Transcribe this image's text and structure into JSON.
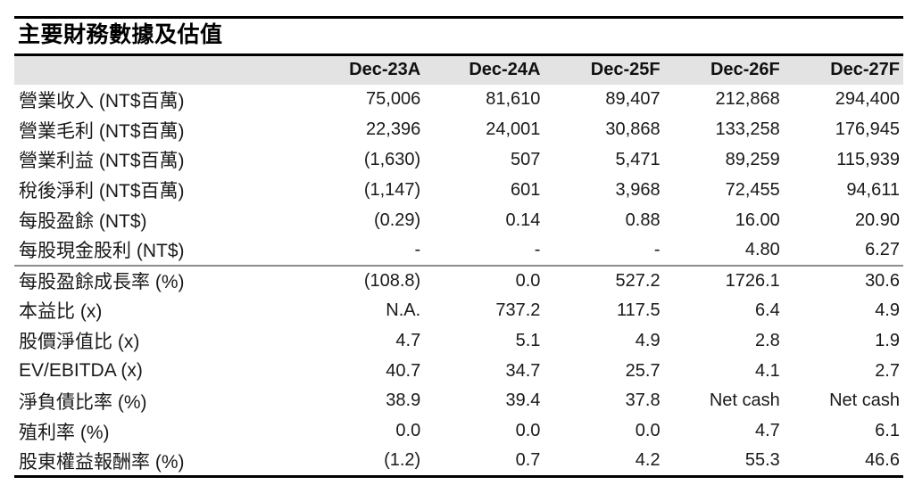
{
  "title": "主要財務數據及估值",
  "colors": {
    "header_bg": "#e3e3e3",
    "rule_dark": "#000000",
    "rule_gray": "#8c8c8c",
    "text": "#1a1a1a"
  },
  "table": {
    "label_column_header": "",
    "columns": [
      "Dec-23A",
      "Dec-24A",
      "Dec-25F",
      "Dec-26F",
      "Dec-27F"
    ],
    "rows": [
      {
        "label": "營業收入 (NT$百萬)",
        "values": [
          "75,006",
          "81,610",
          "89,407",
          "212,868",
          "294,400"
        ]
      },
      {
        "label": "營業毛利 (NT$百萬)",
        "values": [
          "22,396",
          "24,001",
          "30,868",
          "133,258",
          "176,945"
        ]
      },
      {
        "label": "營業利益 (NT$百萬)",
        "values": [
          "(1,630)",
          "507",
          "5,471",
          "89,259",
          "115,939"
        ]
      },
      {
        "label": "稅後淨利 (NT$百萬)",
        "values": [
          "(1,147)",
          "601",
          "3,968",
          "72,455",
          "94,611"
        ]
      },
      {
        "label": "每股盈餘 (NT$)",
        "values": [
          "(0.29)",
          "0.14",
          "0.88",
          "16.00",
          "20.90"
        ]
      },
      {
        "label": "每股現金股利 (NT$)",
        "values": [
          "-",
          "-",
          "-",
          "4.80",
          "6.27"
        ]
      },
      {
        "label": "每股盈餘成長率 (%)",
        "values": [
          "(108.8)",
          "0.0",
          "527.2",
          "1726.1",
          "30.6"
        ]
      },
      {
        "label": "本益比 (x)",
        "values": [
          "N.A.",
          "737.2",
          "117.5",
          "6.4",
          "4.9"
        ]
      },
      {
        "label": "股價淨值比 (x)",
        "values": [
          "4.7",
          "5.1",
          "4.9",
          "2.8",
          "1.9"
        ]
      },
      {
        "label": "EV/EBITDA (x)",
        "values": [
          "40.7",
          "34.7",
          "25.7",
          "4.1",
          "2.7"
        ]
      },
      {
        "label": "淨負債比率 (%)",
        "values": [
          "38.9",
          "39.4",
          "37.8",
          "Net cash",
          "Net cash"
        ]
      },
      {
        "label": "殖利率 (%)",
        "values": [
          "0.0",
          "0.0",
          "0.0",
          "4.7",
          "6.1"
        ]
      },
      {
        "label": "股東權益報酬率 (%)",
        "values": [
          "(1.2)",
          "0.7",
          "4.2",
          "55.3",
          "46.6"
        ]
      }
    ]
  }
}
